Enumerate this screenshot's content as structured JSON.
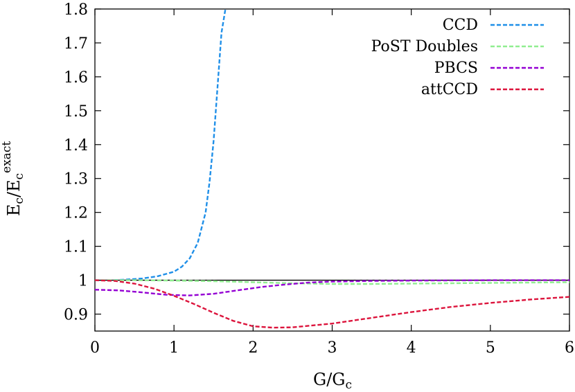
{
  "chart_data": {
    "type": "line",
    "title": "",
    "xlabel": {
      "main": "G/G",
      "sub": "c"
    },
    "ylabel": {
      "main": "E",
      "sub1": "c",
      "mid": "/E",
      "sub2": "c",
      "sup2": "exact"
    },
    "xlim": [
      0,
      6
    ],
    "ylim": [
      0.85,
      1.8
    ],
    "x_ticks": [
      0,
      1,
      2,
      3,
      4,
      5,
      6
    ],
    "x_tick_labels": [
      "0",
      "1",
      "2",
      "3",
      "4",
      "5",
      "6"
    ],
    "y_ticks": [
      0.9,
      1.0,
      1.1,
      1.2,
      1.3,
      1.4,
      1.5,
      1.6,
      1.7,
      1.8
    ],
    "y_tick_labels": [
      "0.9",
      "1",
      "1.1",
      "1.2",
      "1.3",
      "1.4",
      "1.5",
      "1.6",
      "1.7",
      "1.8"
    ],
    "reference_line": {
      "y": 1.0,
      "color": "#000000"
    },
    "legend_position": "top-right",
    "series": [
      {
        "name": "CCD",
        "color": "#1f8fe8",
        "dash": true,
        "x": [
          0,
          0.2,
          0.4,
          0.6,
          0.8,
          1.0,
          1.1,
          1.2,
          1.3,
          1.4,
          1.45,
          1.5,
          1.55,
          1.6,
          1.65
        ],
        "y": [
          1.0,
          1.0,
          1.002,
          1.005,
          1.012,
          1.025,
          1.04,
          1.065,
          1.11,
          1.2,
          1.29,
          1.41,
          1.57,
          1.73,
          1.8
        ]
      },
      {
        "name": "PoST Doubles",
        "color": "#90ee90",
        "dash": true,
        "x": [
          0,
          0.5,
          1.0,
          1.5,
          2.0,
          2.5,
          3.0,
          3.5,
          4.0,
          4.5,
          5.0,
          5.5,
          6.0
        ],
        "y": [
          1.0,
          1.0,
          0.999,
          0.997,
          0.994,
          0.991,
          0.989,
          0.989,
          0.99,
          0.991,
          0.992,
          0.993,
          0.994
        ]
      },
      {
        "name": "PBCS",
        "color": "#9400d3",
        "dash": true,
        "x": [
          0,
          0.3,
          0.6,
          0.9,
          1.2,
          1.5,
          1.8,
          2.1,
          2.4,
          2.7,
          3.0,
          3.5,
          4.0,
          5.0,
          6.0
        ],
        "y": [
          0.972,
          0.97,
          0.964,
          0.957,
          0.955,
          0.96,
          0.97,
          0.98,
          0.987,
          0.993,
          0.996,
          0.998,
          0.999,
          1.0,
          1.0
        ]
      },
      {
        "name": "attCCD",
        "color": "#dc143c",
        "dash": true,
        "x": [
          0,
          0.25,
          0.5,
          0.75,
          1.0,
          1.25,
          1.5,
          1.75,
          2.0,
          2.25,
          2.5,
          3.0,
          3.5,
          4.0,
          4.5,
          5.0,
          5.5,
          6.0
        ],
        "y": [
          1.0,
          0.998,
          0.99,
          0.975,
          0.954,
          0.93,
          0.904,
          0.88,
          0.864,
          0.86,
          0.861,
          0.872,
          0.889,
          0.906,
          0.921,
          0.933,
          0.943,
          0.951
        ]
      }
    ]
  }
}
